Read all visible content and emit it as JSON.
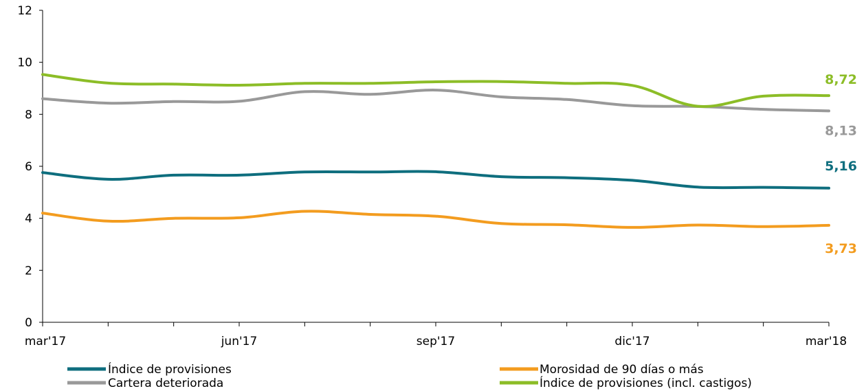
{
  "chart_data": {
    "type": "line",
    "title": "",
    "xlabel": "",
    "ylabel": "",
    "ylim": [
      0,
      12
    ],
    "yticks": [
      0,
      2,
      4,
      6,
      8,
      10,
      12
    ],
    "x": [
      "mar'17",
      "abr'17",
      "may'17",
      "jun'17",
      "jul'17",
      "ago'17",
      "sep'17",
      "oct'17",
      "nov'17",
      "dic'17",
      "ene'18",
      "feb'18",
      "mar'18"
    ],
    "x_tick_labels": [
      "mar'17",
      "",
      "",
      "jun'17",
      "",
      "",
      "sep'17",
      "",
      "",
      "dic'17",
      "",
      "",
      "mar'18"
    ],
    "grid": false,
    "legend_position": "bottom",
    "series": [
      {
        "name": "Índice de provisiones",
        "color": "#0e6e7e",
        "values": [
          5.76,
          5.5,
          5.66,
          5.66,
          5.78,
          5.78,
          5.79,
          5.6,
          5.56,
          5.46,
          5.2,
          5.19,
          5.16
        ],
        "end_label": "5,16"
      },
      {
        "name": "Morosidad de 90 días o más",
        "color": "#f39c1f",
        "values": [
          4.2,
          3.89,
          4.0,
          4.02,
          4.27,
          4.15,
          4.08,
          3.8,
          3.75,
          3.65,
          3.74,
          3.68,
          3.73
        ],
        "end_label": "3,73"
      },
      {
        "name": "Cartera deteriorada",
        "color": "#999999",
        "values": [
          8.6,
          8.43,
          8.49,
          8.5,
          8.87,
          8.77,
          8.93,
          8.67,
          8.57,
          8.33,
          8.3,
          8.19,
          8.13
        ],
        "end_label": "8,13"
      },
      {
        "name": "Índice de provisiones (incl. castigos)",
        "color": "#8cbd27",
        "values": [
          9.53,
          9.2,
          9.16,
          9.12,
          9.19,
          9.19,
          9.25,
          9.26,
          9.19,
          9.11,
          8.31,
          8.7,
          8.72
        ],
        "end_label": "8,72"
      }
    ]
  },
  "legend": {
    "items": [
      {
        "label": "Índice de provisiones",
        "color": "#0e6e7e"
      },
      {
        "label": "Morosidad de 90 días o más",
        "color": "#f39c1f"
      },
      {
        "label": "Cartera deteriorada",
        "color": "#999999"
      },
      {
        "label": "Índice de provisiones (incl. castigos)",
        "color": "#8cbd27"
      }
    ]
  }
}
